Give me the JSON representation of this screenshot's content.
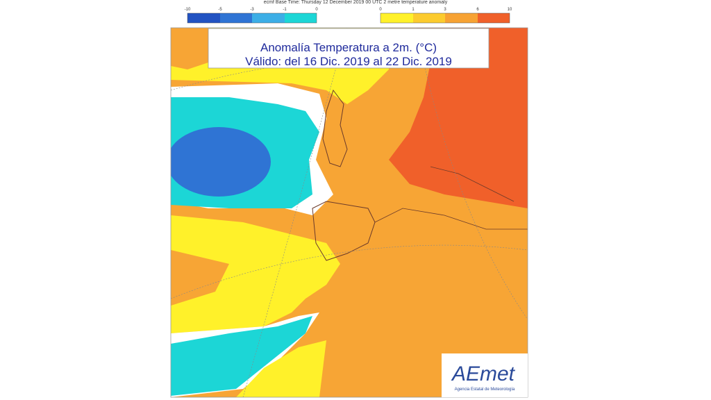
{
  "header": "ecmf Base Time: Thursday 12 December 2019 00 UTC 2 metre temperature anomaly",
  "legend": {
    "cold_labels": [
      "-10",
      "-5",
      "-3",
      "-1",
      "0"
    ],
    "warm_labels": [
      "0",
      "1",
      "3",
      "6",
      "10"
    ]
  },
  "title": {
    "line1": "Anomalía Temperatura a 2m. (°C)",
    "line2": "Válido: del 16 Dic. 2019 al 22 Dic. 2019"
  },
  "logo": {
    "name": "AEmet",
    "subtitle": "Agencia Estatal de Meteorología"
  }
}
